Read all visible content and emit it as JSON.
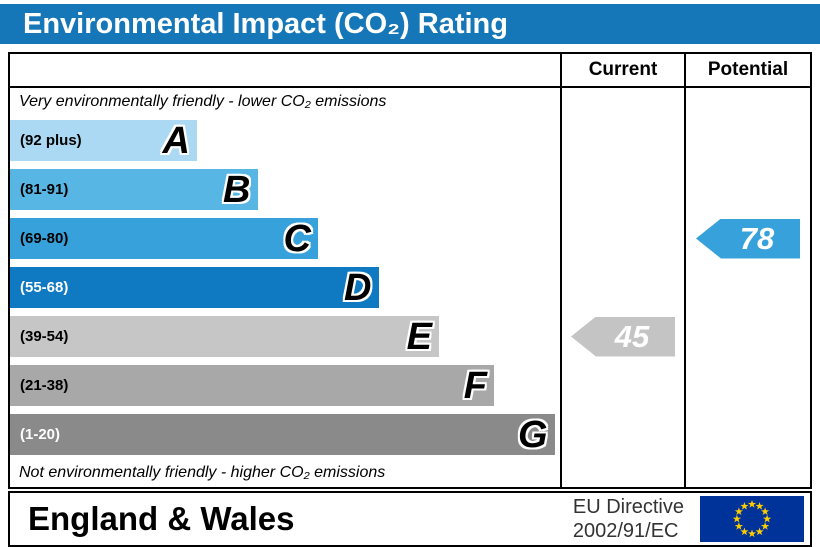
{
  "title": "Environmental Impact (CO₂) Rating",
  "header": {
    "current": "Current",
    "potential": "Potential"
  },
  "notes": {
    "top": "Very environmentally friendly - lower CO₂ emissions",
    "bottom": "Not environmentally friendly - higher CO₂ emissions"
  },
  "chart_data": {
    "type": "bar",
    "title": "Environmental Impact (CO₂) Rating",
    "bands": [
      {
        "letter": "A",
        "range": "(92 plus)",
        "color": "#abd8f2",
        "width_pct": 34,
        "label_color": "#000000"
      },
      {
        "letter": "B",
        "range": "(81-91)",
        "color": "#58b6e4",
        "width_pct": 45,
        "label_color": "#000000"
      },
      {
        "letter": "C",
        "range": "(69-80)",
        "color": "#36a1da",
        "width_pct": 56,
        "label_color": "#000000"
      },
      {
        "letter": "D",
        "range": "(55-68)",
        "color": "#0f7ac1",
        "width_pct": 67,
        "label_color": "#ffffff"
      },
      {
        "letter": "E",
        "range": "(39-54)",
        "color": "#c6c6c6",
        "width_pct": 78,
        "label_color": "#000000"
      },
      {
        "letter": "F",
        "range": "(21-38)",
        "color": "#a8a8a8",
        "width_pct": 88,
        "label_color": "#000000"
      },
      {
        "letter": "G",
        "range": "(1-20)",
        "color": "#8a8a8a",
        "width_pct": 99,
        "label_color": "#ffffff"
      }
    ],
    "current": {
      "value": "45",
      "band": "E",
      "band_index": 4,
      "color": "#c4c4c4"
    },
    "potential": {
      "value": "78",
      "band": "C",
      "band_index": 2,
      "color": "#36a1da"
    }
  },
  "footer": {
    "region": "England & Wales",
    "directive": [
      "EU Directive",
      "2002/91/EC"
    ],
    "flag_colors": {
      "field": "#003399",
      "stars": "#ffcc00"
    }
  },
  "colors": {
    "title_bg": "#1577b7",
    "title_fg": "#ffffff"
  }
}
